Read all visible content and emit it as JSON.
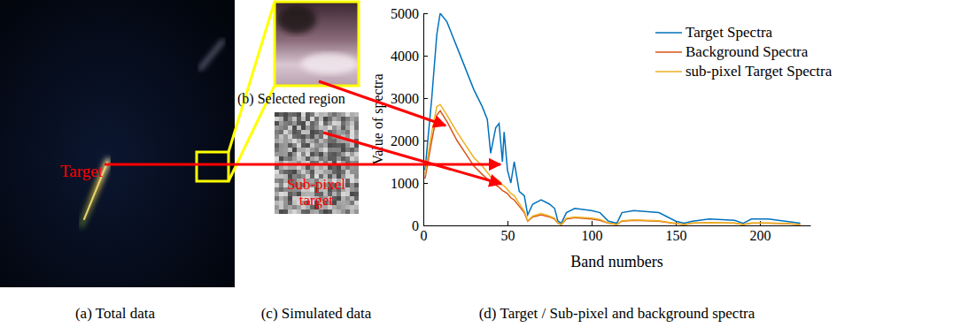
{
  "panels": {
    "a": {
      "caption": "(a) Total data",
      "label": "Target"
    },
    "b": {
      "caption": "(b) Selected region"
    },
    "c": {
      "caption": "(c) Simulated data",
      "label": [
        "Sub-pixel",
        "target"
      ]
    },
    "d": {
      "caption": "(d) Target / Sub-pixel and background spectra"
    }
  },
  "chart_data": {
    "type": "line",
    "x_label": "Band numbers",
    "y_label": "Value of spectra",
    "x": [
      1,
      5,
      8,
      10,
      14,
      20,
      25,
      30,
      35,
      38,
      40,
      43,
      45,
      47,
      48,
      50,
      52,
      54,
      57,
      60,
      62,
      65,
      70,
      75,
      78,
      80,
      82,
      85,
      90,
      100,
      105,
      110,
      115,
      118,
      125,
      140,
      150,
      155,
      160,
      170,
      185,
      190,
      195,
      205,
      215,
      224
    ],
    "series": [
      {
        "name": "Target Spectra",
        "color": "#0072bd",
        "values": [
          1300,
          3000,
          4500,
          5000,
          4800,
          4200,
          3700,
          3200,
          2800,
          2500,
          1700,
          2300,
          2400,
          1500,
          2200,
          1300,
          1000,
          1500,
          800,
          700,
          250,
          500,
          600,
          500,
          400,
          100,
          50,
          300,
          400,
          350,
          300,
          100,
          50,
          300,
          350,
          300,
          100,
          50,
          100,
          150,
          120,
          50,
          150,
          150,
          100,
          50
        ]
      },
      {
        "name": "Background Spectra",
        "color": "#d95319",
        "values": [
          1100,
          2000,
          2600,
          2700,
          2450,
          2000,
          1700,
          1400,
          1200,
          1100,
          1000,
          950,
          900,
          820,
          800,
          750,
          650,
          600,
          450,
          300,
          100,
          200,
          250,
          200,
          150,
          50,
          20,
          150,
          180,
          150,
          120,
          50,
          20,
          100,
          120,
          100,
          40,
          20,
          50,
          60,
          50,
          20,
          50,
          50,
          40,
          20
        ]
      },
      {
        "name": "sub-pixel Target Spectra",
        "color": "#edb120",
        "values": [
          1200,
          2200,
          2800,
          2850,
          2600,
          2200,
          1900,
          1600,
          1400,
          1250,
          1150,
          1100,
          1050,
          950,
          930,
          850,
          750,
          700,
          520,
          330,
          110,
          220,
          280,
          220,
          170,
          55,
          22,
          170,
          200,
          170,
          140,
          55,
          22,
          110,
          130,
          110,
          45,
          22,
          55,
          65,
          55,
          22,
          55,
          55,
          45,
          22
        ]
      }
    ],
    "xlim": [
      0,
      230
    ],
    "xticks": [
      0,
      50,
      100,
      150,
      200
    ],
    "ylim": [
      0,
      5000
    ],
    "yticks": [
      0,
      1000,
      2000,
      3000,
      4000,
      5000
    ],
    "legend": "northeast",
    "grid": false
  }
}
